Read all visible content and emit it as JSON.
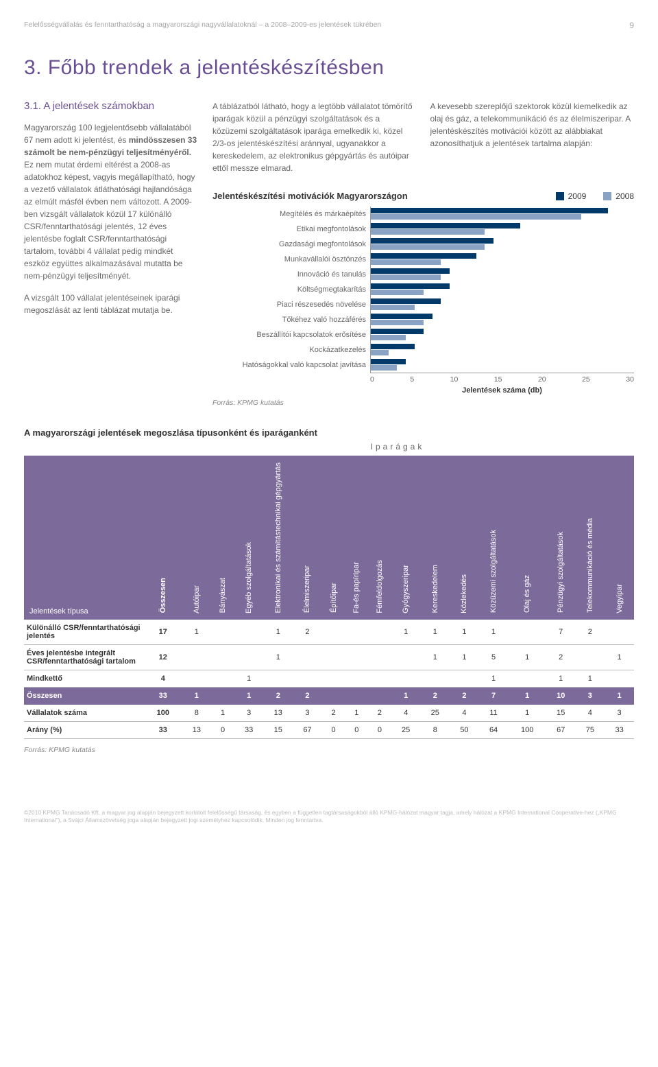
{
  "running_head": "Felelősségvállalás és fenntarthatóság a magyarországi nagyvállalatoknál – a 2008–2009-es jelentések tükrében",
  "page_number": "9",
  "title": "3. Főbb trendek a jelentéskészítésben",
  "section_31_head": "3.1. A jelentések számokban",
  "left_para_1a": "Magyarország 100 legjelentősebb vállalatából 67 nem adott ki jelentést, és ",
  "left_para_1b": "mindösszesen 33 számolt be nem-pénzügyi teljesítményéről.",
  "left_para_1c": " Ez nem mutat érdemi eltérést a 2008-as adatokhoz képest, vagyis megállapítható, hogy a vezető vállalatok átláthatósági hajlandósága az elmúlt másfél évben nem változott. A 2009-ben vizsgált vállalatok közül 17 különálló CSR/fenntarthatósági jelentés, 12 éves jelentésbe foglalt CSR/fenntarthatósági tartalom, további 4 vállalat pedig mindkét eszköz együttes alkalmazásával mutatta be nem-pénzügyi teljesítményét.",
  "left_para_2": "A vizsgált 100 vállalat jelentéseinek iparági megoszlását az lenti táblázat mutatja be.",
  "right_para_1": "A táblázatból látható, hogy a legtöbb vállalatot tömörítő iparágak közül a pénzügyi szolgáltatások és a közüzemi szolgáltatások iparága emelkedik ki, közel 2/3-os jelentéskészítési aránnyal, ugyanakkor a kereskedelem, az elektronikus gépgyártás és autóipar ettől messze elmarad.",
  "right_para_2": "A kevesebb szereplőjű szektorok közül kiemelkedik az olaj és gáz, a telekommunikáció és az élelmiszeripar. A jelentéskészítés motivációi között az alábbiakat azonosíthatjuk a jelentések tartalma alapján:",
  "chart": {
    "title": "Jelentéskészítési motivációk Magyarországon",
    "legend": [
      {
        "label": "2009",
        "color": "#003a6a"
      },
      {
        "label": "2008",
        "color": "#8aa3c4"
      }
    ],
    "x_max": 30,
    "x_ticks": [
      "0",
      "5",
      "10",
      "15",
      "20",
      "25",
      "30"
    ],
    "x_axis_label": "Jelentések száma (db)",
    "bar_colors": {
      "y2009": "#003a6a",
      "y2008": "#8aa3c4"
    },
    "rows": [
      {
        "label": "Megítélés és márkaépítés",
        "v2009": 27,
        "v2008": 24
      },
      {
        "label": "Etikai megfontolások",
        "v2009": 17,
        "v2008": 13
      },
      {
        "label": "Gazdasági megfontolások",
        "v2009": 14,
        "v2008": 13
      },
      {
        "label": "Munkavállalói ösztönzés",
        "v2009": 12,
        "v2008": 8
      },
      {
        "label": "Innováció és tanulás",
        "v2009": 9,
        "v2008": 8
      },
      {
        "label": "Költségmegtakarítás",
        "v2009": 9,
        "v2008": 6
      },
      {
        "label": "Piaci részesedés növelése",
        "v2009": 8,
        "v2008": 5
      },
      {
        "label": "Tőkéhez való hozzáférés",
        "v2009": 7,
        "v2008": 6
      },
      {
        "label": "Beszállítói kapcsolatok erősítése",
        "v2009": 6,
        "v2008": 4
      },
      {
        "label": "Kockázatkezelés",
        "v2009": 5,
        "v2008": 2
      },
      {
        "label": "Hatóságokkal való kapcsolat javítása",
        "v2009": 4,
        "v2008": 3
      }
    ],
    "source": "Forrás: KPMG kutatás"
  },
  "table": {
    "section_title": "A magyarországi jelentések megoszlása típusonként és iparáganként",
    "super_heading": "Iparágak",
    "row_label_header": "Jelentések típusa",
    "header_bg": "#7b6a9a",
    "columns": [
      "Összesen",
      "Autóipar",
      "Bányászat",
      "Egyéb szolgáltatások",
      "Elektronikai és számítástechnikai gépgyártás",
      "Élelmiszeripar",
      "Építőipar",
      "Fa-és papíripar",
      "Fémfeldolgozás",
      "Gyógyszeripar",
      "Kereskedelem",
      "Közlekedés",
      "Közüzemi szolgáltatások",
      "Olaj és gáz",
      "Pénzügyi szolgáltatások",
      "Telekommunikáció és média",
      "Vegyipar"
    ],
    "rows": [
      {
        "dark": false,
        "label": "Különálló CSR/fenntarthatósági jelentés",
        "cells": [
          "17",
          "1",
          "",
          "",
          "1",
          "2",
          "",
          "",
          "",
          "1",
          "1",
          "1",
          "1",
          "",
          "7",
          "2",
          ""
        ]
      },
      {
        "dark": false,
        "label": "Éves jelentésbe integrált CSR/fenntarthatósági tartalom",
        "cells": [
          "12",
          "",
          "",
          "",
          "1",
          "",
          "",
          "",
          "",
          "",
          "1",
          "1",
          "5",
          "1",
          "2",
          "",
          "1"
        ]
      },
      {
        "dark": false,
        "label": "Mindkettő",
        "cells": [
          "4",
          "",
          "",
          "1",
          "",
          "",
          "",
          "",
          "",
          "",
          "",
          "",
          "1",
          "",
          "1",
          "1",
          ""
        ]
      },
      {
        "dark": true,
        "label": "Összesen",
        "cells": [
          "33",
          "1",
          "",
          "1",
          "2",
          "2",
          "",
          "",
          "",
          "1",
          "2",
          "2",
          "7",
          "1",
          "10",
          "3",
          "1"
        ]
      },
      {
        "dark": false,
        "label": "Vállalatok száma",
        "cells": [
          "100",
          "8",
          "1",
          "3",
          "13",
          "3",
          "2",
          "1",
          "2",
          "4",
          "25",
          "4",
          "11",
          "1",
          "15",
          "4",
          "3"
        ]
      },
      {
        "dark": false,
        "label": "Arány (%)",
        "cells": [
          "33",
          "13",
          "0",
          "33",
          "15",
          "67",
          "0",
          "0",
          "0",
          "25",
          "8",
          "50",
          "64",
          "100",
          "67",
          "75",
          "33"
        ]
      }
    ],
    "source": "Forrás: KPMG kutatás"
  },
  "legal": "©2010 KPMG Tanácsadó Kft, a magyar jog alapján bejegyzett korlátolt felelősségű társaság, és egyben a független tagtársaságokból álló KPMG-hálózat magyar tagja, amely hálózat a KPMG International Cooperative-hez („KPMG International”), a Svájci Államszövetség joga alapján bejegyzett jogi személyhez kapcsolódik. Minden jog fenntartva."
}
